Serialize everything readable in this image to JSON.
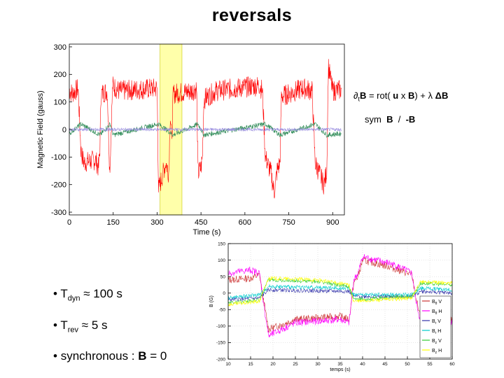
{
  "title": "reversals",
  "equation": {
    "line1_prefix": "∂",
    "line1_sub": "t",
    "line1_B": "B",
    "line1_rest_a": " = rot( ",
    "line1_u": "u",
    "line1_x": " x ",
    "line1_B2": "B",
    "line1_rest_b": ") + λ ",
    "line1_lap": "ΔB",
    "line2_sym": "sym",
    "line2_B": "B",
    "line2_slash": " / ",
    "line2_negB": "-B"
  },
  "bullets": [
    {
      "marker": "•",
      "main": "T",
      "sub": "dyn",
      "rest": " ≈ 100 s"
    },
    {
      "marker": "•",
      "main": "T",
      "sub": "rev",
      "rest": " ≈ 5 s"
    },
    {
      "marker": "•",
      "main": "synchronous : ",
      "bold": "B",
      "rest": " = 0"
    }
  ],
  "chart_data": [
    {
      "type": "line",
      "xlabel": "Time (s)",
      "ylabel": "Magnetic Field (gauss)",
      "xlim": [
        0,
        940
      ],
      "ylim": [
        -310,
        310
      ],
      "xticks": [
        0,
        150,
        300,
        450,
        600,
        750,
        900
      ],
      "yticks": [
        300,
        200,
        100,
        0,
        -100,
        -200,
        -300
      ],
      "highlight": {
        "x0": 310,
        "x1": 385,
        "color": "#ffffaa"
      },
      "colors": {
        "main": "#ff0000",
        "secondary": "#2e8b57",
        "tertiary": "#9b8fe0"
      },
      "series": [
        {
          "name": "main",
          "points": [
            [
              0,
              145
            ],
            [
              10,
              130
            ],
            [
              30,
              150
            ],
            [
              40,
              -80
            ],
            [
              50,
              -120
            ],
            [
              90,
              -110
            ],
            [
              100,
              -140
            ],
            [
              105,
              -60
            ],
            [
              108,
              130
            ],
            [
              130,
              140
            ],
            [
              138,
              -150
            ],
            [
              142,
              -40
            ],
            [
              148,
              160
            ],
            [
              170,
              140
            ],
            [
              300,
              150
            ],
            [
              305,
              -220
            ],
            [
              310,
              -200
            ],
            [
              330,
              -120
            ],
            [
              340,
              -160
            ],
            [
              345,
              60
            ],
            [
              350,
              -40
            ],
            [
              355,
              130
            ],
            [
              420,
              140
            ],
            [
              435,
              150
            ],
            [
              440,
              -160
            ],
            [
              450,
              -140
            ],
            [
              455,
              -100
            ],
            [
              460,
              110
            ],
            [
              500,
              140
            ],
            [
              650,
              160
            ],
            [
              660,
              140
            ],
            [
              670,
              -100
            ],
            [
              690,
              -160
            ],
            [
              700,
              -230
            ],
            [
              710,
              -150
            ],
            [
              720,
              -120
            ],
            [
              725,
              120
            ],
            [
              800,
              150
            ],
            [
              830,
              140
            ],
            [
              840,
              -120
            ],
            [
              870,
              -200
            ],
            [
              880,
              -150
            ],
            [
              885,
              230
            ],
            [
              900,
              140
            ],
            [
              930,
              145
            ]
          ]
        },
        {
          "name": "secondary",
          "points": [
            [
              0,
              -15
            ],
            [
              40,
              20
            ],
            [
              105,
              -20
            ],
            [
              140,
              20
            ],
            [
              150,
              -20
            ],
            [
              305,
              20
            ],
            [
              355,
              -20
            ],
            [
              440,
              20
            ],
            [
              460,
              -20
            ],
            [
              670,
              20
            ],
            [
              720,
              -20
            ],
            [
              840,
              20
            ],
            [
              880,
              -20
            ],
            [
              930,
              -15
            ]
          ]
        },
        {
          "name": "tertiary",
          "points": [
            [
              0,
              0
            ],
            [
              930,
              0
            ]
          ]
        }
      ]
    },
    {
      "type": "line",
      "xlabel": "temps (s)",
      "ylabel": "B (G)",
      "xlim": [
        10,
        60
      ],
      "ylim": [
        -200,
        150
      ],
      "xticks": [
        10,
        15,
        20,
        25,
        30,
        35,
        40,
        45,
        50,
        55,
        60
      ],
      "yticks": [
        150,
        100,
        50,
        0,
        -50,
        -100,
        -150,
        -200
      ],
      "legend": {
        "location": "bottom-right",
        "entries": [
          {
            "label": "B",
            "sub": "θ",
            "suffix": " V",
            "color": "#cc3333"
          },
          {
            "label": "B",
            "sub": "θ",
            "suffix": " H",
            "color": "#ff00ff"
          },
          {
            "label": "B",
            "sub": "r",
            "suffix": " V",
            "color": "#3333aa"
          },
          {
            "label": "B",
            "sub": "r",
            "suffix": " H",
            "color": "#00cccc"
          },
          {
            "label": "B",
            "sub": "z",
            "suffix": " V",
            "color": "#33cc33"
          },
          {
            "label": "B",
            "sub": "z",
            "suffix": " H",
            "color": "#ffff00"
          }
        ]
      },
      "series": [
        {
          "name": "Bθ V",
          "color": "#cc3333",
          "points": [
            [
              10,
              40
            ],
            [
              15,
              45
            ],
            [
              17,
              55
            ],
            [
              18,
              -30
            ],
            [
              19,
              -110
            ],
            [
              25,
              -80
            ],
            [
              35,
              -70
            ],
            [
              37,
              -80
            ],
            [
              38,
              30
            ],
            [
              39,
              50
            ],
            [
              40,
              100
            ],
            [
              46,
              80
            ],
            [
              48,
              70
            ],
            [
              51,
              55
            ],
            [
              52,
              -20
            ],
            [
              53,
              -80
            ],
            [
              57,
              -100
            ],
            [
              60,
              -80
            ]
          ]
        },
        {
          "name": "Bθ H",
          "color": "#ff00ff",
          "points": [
            [
              10,
              60
            ],
            [
              15,
              70
            ],
            [
              17,
              60
            ],
            [
              18,
              -40
            ],
            [
              19,
              -130
            ],
            [
              25,
              -90
            ],
            [
              35,
              -80
            ],
            [
              37,
              -90
            ],
            [
              38,
              40
            ],
            [
              39,
              60
            ],
            [
              40,
              110
            ],
            [
              46,
              90
            ],
            [
              48,
              80
            ],
            [
              51,
              60
            ],
            [
              52,
              -30
            ],
            [
              53,
              -90
            ],
            [
              57,
              -110
            ],
            [
              60,
              -90
            ]
          ]
        },
        {
          "name": "Br V",
          "color": "#3333aa",
          "points": [
            [
              10,
              -20
            ],
            [
              17,
              -15
            ],
            [
              19,
              10
            ],
            [
              37,
              5
            ],
            [
              38,
              -10
            ],
            [
              51,
              -10
            ],
            [
              53,
              5
            ],
            [
              60,
              0
            ]
          ]
        },
        {
          "name": "Br H",
          "color": "#00cccc",
          "points": [
            [
              10,
              -15
            ],
            [
              17,
              -5
            ],
            [
              19,
              20
            ],
            [
              37,
              15
            ],
            [
              38,
              -5
            ],
            [
              51,
              -5
            ],
            [
              53,
              15
            ],
            [
              60,
              10
            ]
          ]
        },
        {
          "name": "Bz V",
          "color": "#33cc33",
          "points": [
            [
              10,
              -30
            ],
            [
              17,
              -20
            ],
            [
              19,
              40
            ],
            [
              30,
              35
            ],
            [
              37,
              20
            ],
            [
              38,
              -20
            ],
            [
              51,
              -10
            ],
            [
              53,
              30
            ],
            [
              60,
              25
            ]
          ]
        },
        {
          "name": "Bz H",
          "color": "#ffff00",
          "points": [
            [
              10,
              -35
            ],
            [
              17,
              -25
            ],
            [
              19,
              45
            ],
            [
              30,
              40
            ],
            [
              37,
              25
            ],
            [
              38,
              -25
            ],
            [
              51,
              -15
            ],
            [
              53,
              35
            ],
            [
              60,
              30
            ]
          ]
        }
      ]
    }
  ]
}
